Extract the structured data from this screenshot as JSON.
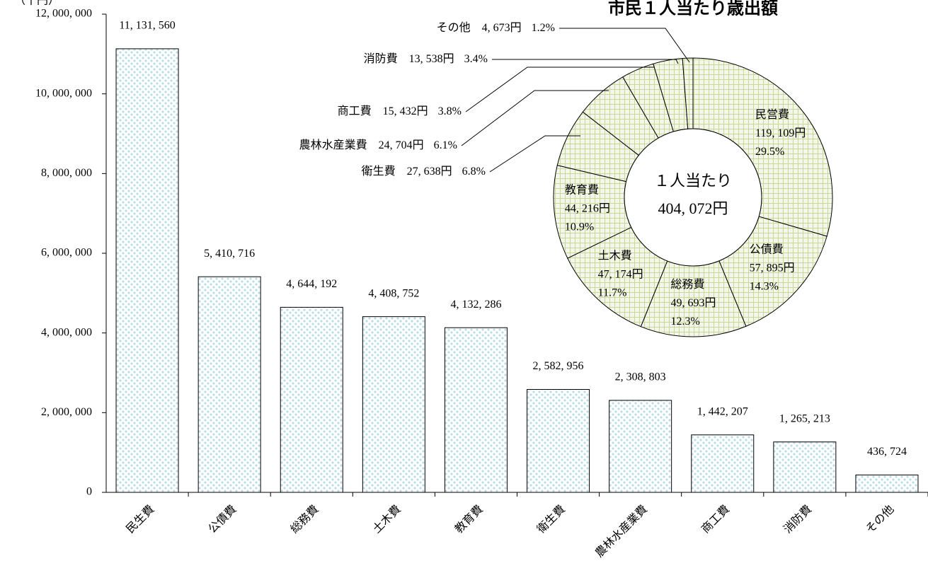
{
  "chart_data": [
    {
      "type": "bar",
      "y_label": "（千円）",
      "categories": [
        "民生費",
        "公債費",
        "総務費",
        "土木費",
        "教育費",
        "衛生費",
        "農林水産業費",
        "商工費",
        "消防費",
        "その他"
      ],
      "values": [
        11131560,
        5410716,
        4644192,
        4408752,
        4132286,
        2582956,
        2308803,
        1442207,
        1265213,
        436724
      ],
      "value_labels": [
        "11, 131, 560",
        "5, 410, 716",
        "4, 644, 192",
        "4, 408, 752",
        "4, 132, 286",
        "2, 582, 956",
        "2, 308, 803",
        "1, 442, 207",
        "1, 265, 213",
        "436, 724"
      ],
      "ylim": [
        0,
        12000000
      ],
      "yticks": [
        0,
        {
          "value": 2000000,
          "label": "2, 000, 000"
        },
        {
          "value": 4000000,
          "label": "4, 000, 000"
        },
        {
          "value": 6000000,
          "label": "6, 000, 000"
        },
        {
          "value": 8000000,
          "label": "8, 000, 000"
        },
        {
          "value": 10000000,
          "label": "10, 000, 000"
        },
        {
          "value": 12000000,
          "label": "12, 000, 000"
        }
      ],
      "color": "#bcdce8"
    },
    {
      "type": "donut",
      "title": "市民１人当たり歳出額",
      "center_title": "１人当たり",
      "total": 404072,
      "total_label": "404, 072円",
      "categories": [
        "民営費",
        "公債費",
        "総務費",
        "土木費",
        "教育費",
        "衛生費",
        "農林水産業費",
        "商工費",
        "消防費",
        "その他"
      ],
      "amounts": [
        119109,
        57895,
        49693,
        47174,
        44216,
        27638,
        24704,
        15432,
        13538,
        4673
      ],
      "amount_labels": [
        "119, 109円",
        "57, 895円",
        "49, 693円",
        "47, 174円",
        "44, 216円",
        "27, 638円",
        "24, 704円",
        "15, 432円",
        "13, 538円",
        "4, 673円"
      ],
      "values": [
        29.5,
        14.3,
        12.3,
        11.7,
        10.9,
        6.8,
        6.1,
        3.8,
        3.4,
        1.2
      ],
      "value_labels": [
        "29.5%",
        "14.3%",
        "12.3%",
        "11.7%",
        "10.9%",
        "6.8%",
        "6.1%",
        "3.8%",
        "3.4%",
        "1.2%"
      ],
      "color": "#c8d89a"
    }
  ]
}
